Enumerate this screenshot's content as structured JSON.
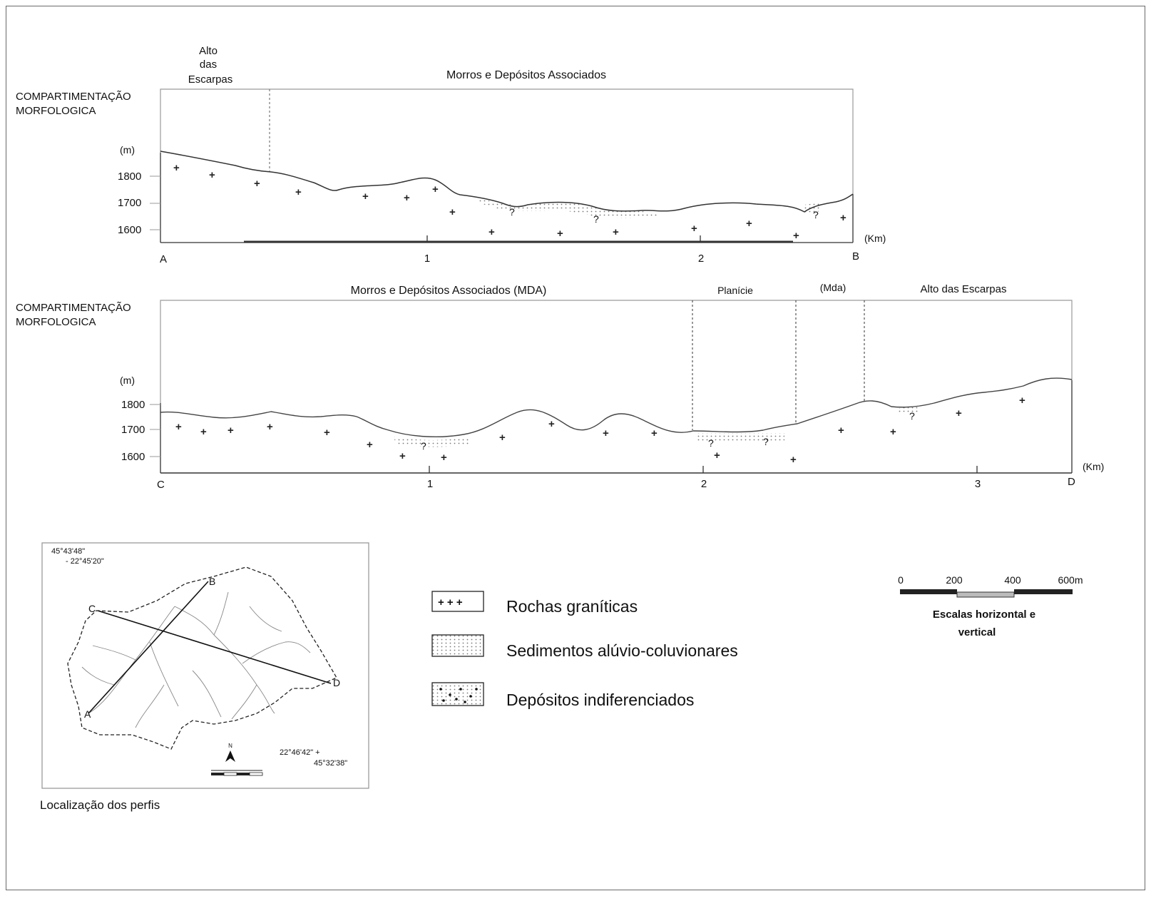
{
  "profile1": {
    "zone_left": "Alto\ndas\nEscarpas",
    "zone_main": "Morros  e  Depósitos  Associados",
    "compart_label_1": "COMPARTIMENTAÇÃO",
    "compart_label_2": "MORFOLOGICA",
    "unit_y": "(m)",
    "y_ticks": [
      "1800",
      "1700",
      "1600"
    ],
    "x_ticks": [
      "1",
      "2"
    ],
    "unit_x": "(Km)",
    "end_left": "A",
    "end_right": "B",
    "query_marks": [
      "?",
      "?",
      "?"
    ]
  },
  "profile2": {
    "zone_1": "Morros  e  Depósitos  Associados (MDA)",
    "zone_2": "Planície",
    "zone_3": "(Mda)",
    "zone_4": "Alto das Escarpas",
    "compart_label_1": "COMPARTIMENTAÇÃO",
    "compart_label_2": "MORFOLOGICA",
    "unit_y": "(m)",
    "y_ticks": [
      "1800",
      "1700",
      "1600"
    ],
    "x_ticks": [
      "1",
      "2",
      "3"
    ],
    "unit_x": "(Km)",
    "end_left": "C",
    "end_right": "D",
    "query_marks": [
      "?",
      "?",
      "?",
      "?"
    ]
  },
  "map": {
    "coord_top_1": "45°43'48\"",
    "coord_top_2": "- 22°45'20\"",
    "coord_bottom_1": "22°46'42\"  +",
    "coord_bottom_2": "45°32'38\"",
    "north_label": "N",
    "point_labels": [
      "A",
      "B",
      "C",
      "D"
    ],
    "caption": "Localização dos perfis"
  },
  "legend": {
    "items": [
      {
        "label": "Rochas graníticas",
        "pattern": "crosses"
      },
      {
        "label": "Sedimentos alúvio-coluvionares",
        "pattern": "dotted"
      },
      {
        "label": "Depósitos indiferenciados",
        "pattern": "mixed"
      }
    ]
  },
  "scale": {
    "ticks": [
      "0",
      "200",
      "400",
      "600m"
    ],
    "caption_1": "Escalas horizontal e",
    "caption_2": "vertical"
  }
}
